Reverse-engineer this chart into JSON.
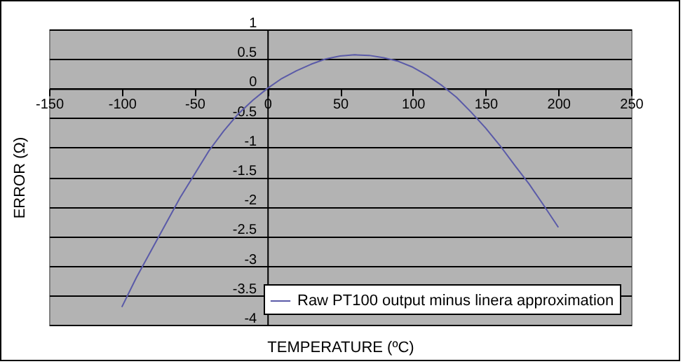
{
  "chart_data": {
    "type": "line",
    "xlabel": "TEMPERATURE (ºC)",
    "ylabel": "ERROR (Ω)",
    "x": [
      -100,
      -90,
      -80,
      -70,
      -60,
      -50,
      -40,
      -30,
      -20,
      -10,
      0,
      10,
      20,
      30,
      40,
      50,
      60,
      70,
      80,
      90,
      100,
      110,
      120,
      130,
      140,
      150,
      160,
      170,
      180,
      190,
      200
    ],
    "series": [
      {
        "name": "Raw PT100 output minus linera approximation",
        "color": "#5a5aa8",
        "values": [
          -3.7,
          -3.2,
          -2.75,
          -2.3,
          -1.85,
          -1.45,
          -1.05,
          -0.72,
          -0.43,
          -0.2,
          0,
          0.17,
          0.3,
          0.41,
          0.5,
          0.55,
          0.57,
          0.56,
          0.52,
          0.46,
          0.36,
          0.22,
          0.05,
          -0.15,
          -0.4,
          -0.67,
          -0.97,
          -1.3,
          -1.62,
          -1.98,
          -2.35
        ]
      }
    ],
    "xlim": [
      -150,
      250
    ],
    "xticks": [
      -150,
      -100,
      -50,
      0,
      50,
      100,
      150,
      200,
      250
    ],
    "ylim": [
      -4,
      1
    ],
    "yticks": [
      -4,
      -3.5,
      -3,
      -2.5,
      -2,
      -1.5,
      -1,
      -0.5,
      0,
      0.5,
      1
    ],
    "grid": "y",
    "legend": "bottom right",
    "marker": "none",
    "line_style": "solid"
  }
}
